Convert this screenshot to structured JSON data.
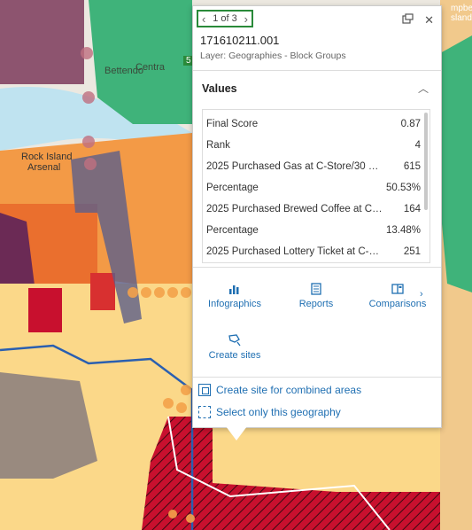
{
  "map_labels": {
    "arsenal_line1": "Rock Island",
    "arsenal_line2": "Arsenal",
    "bettendorf": "Bettendo",
    "central": "Centra",
    "campbell_line1": "mpbe",
    "campbell_line2": "sland",
    "route": "5"
  },
  "popup": {
    "pager_text": "1 of 3",
    "feature_id": "171610211.001",
    "layer_line": "Layer: Geographies - Block Groups",
    "values_heading": "Values",
    "rows": [
      {
        "label": "Final Score",
        "value": "0.87"
      },
      {
        "label": "Rank",
        "value": "4"
      },
      {
        "label": "2025 Purchased Gas at C-Store/30 D...",
        "value": "615"
      },
      {
        "label": "Percentage",
        "value": "50.53%"
      },
      {
        "label": "2025 Purchased Brewed Coffee at C-...",
        "value": "164"
      },
      {
        "label": "Percentage",
        "value": "13.48%"
      },
      {
        "label": "2025 Purchased Lottery Ticket at C-St...",
        "value": "251"
      }
    ],
    "actions": {
      "infographics": "Infographics",
      "reports": "Reports",
      "comparisons": "Comparisons",
      "create_sites": "Create sites"
    },
    "links": {
      "combined": "Create site for combined areas",
      "select_only": "Select only this geography"
    }
  },
  "colors": {
    "accent_green": "#2a8a3a",
    "link_blue": "#1f6fb2",
    "selected_red": "#c8102e",
    "orange": "#f4a24a",
    "pale_yellow": "#fbd889"
  }
}
